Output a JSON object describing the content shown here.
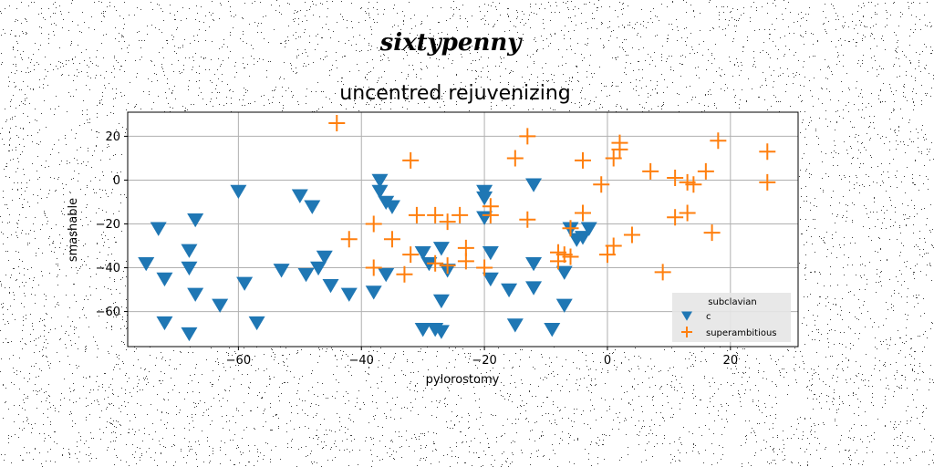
{
  "chart_data": {
    "type": "scatter",
    "suptitle": "sixtypenny",
    "title": "uncentred rejuvenizing",
    "xlabel": "pylorostomy",
    "ylabel": "smashable",
    "xlim": [
      -78,
      31
    ],
    "ylim": [
      -76,
      31
    ],
    "xticks": [
      -60,
      -40,
      -20,
      0,
      20
    ],
    "yticks": [
      -60,
      -40,
      -20,
      0,
      20
    ],
    "grid": true,
    "legend": {
      "title": "subclavian",
      "placement": "lower-right"
    },
    "colors": {
      "c": "#1f77b4",
      "superambitious": "#ff7f0e",
      "grid": "#b0b0b0",
      "legend_bg": "#e5e5e5"
    },
    "series": [
      {
        "name": "c",
        "marker": "triangle-down",
        "points": [
          [
            -73,
            -22
          ],
          [
            -67,
            -18
          ],
          [
            -60,
            -5
          ],
          [
            -50,
            -7
          ],
          [
            -48,
            -12
          ],
          [
            -37,
            0
          ],
          [
            -37,
            -5
          ],
          [
            -36,
            -10
          ],
          [
            -35,
            -12
          ],
          [
            -20,
            -5
          ],
          [
            -20,
            -8
          ],
          [
            -20,
            -17
          ],
          [
            -12,
            -2
          ],
          [
            -75,
            -38
          ],
          [
            -72,
            -45
          ],
          [
            -68,
            -32
          ],
          [
            -68,
            -40
          ],
          [
            -67,
            -52
          ],
          [
            -63,
            -57
          ],
          [
            -59,
            -47
          ],
          [
            -53,
            -41
          ],
          [
            -49,
            -43
          ],
          [
            -47,
            -40
          ],
          [
            -46,
            -35
          ],
          [
            -45,
            -48
          ],
          [
            -42,
            -52
          ],
          [
            -38,
            -51
          ],
          [
            -36,
            -43
          ],
          [
            -30,
            -33
          ],
          [
            -29,
            -38
          ],
          [
            -27,
            -31
          ],
          [
            -26,
            -41
          ],
          [
            -27,
            -55
          ],
          [
            -19,
            -33
          ],
          [
            -19,
            -45
          ],
          [
            -16,
            -50
          ],
          [
            -12,
            -38
          ],
          [
            -12,
            -49
          ],
          [
            -7,
            -42
          ],
          [
            -7,
            -57
          ],
          [
            -6,
            -22
          ],
          [
            -5,
            -27
          ],
          [
            -4,
            -26
          ],
          [
            -3,
            -22
          ],
          [
            -72,
            -65
          ],
          [
            -68,
            -70
          ],
          [
            -57,
            -65
          ],
          [
            -30,
            -68
          ],
          [
            -28,
            -68
          ],
          [
            -27,
            -69
          ],
          [
            -15,
            -66
          ],
          [
            -9,
            -68
          ]
        ]
      },
      {
        "name": "superambitious",
        "marker": "plus",
        "points": [
          [
            -44,
            26
          ],
          [
            -13,
            20
          ],
          [
            -32,
            9
          ],
          [
            -15,
            10
          ],
          [
            -4,
            9
          ],
          [
            1,
            10
          ],
          [
            2,
            14
          ],
          [
            2,
            17
          ],
          [
            7,
            4
          ],
          [
            11,
            1
          ],
          [
            13,
            -1
          ],
          [
            14,
            -2
          ],
          [
            16,
            4
          ],
          [
            18,
            18
          ],
          [
            26,
            13
          ],
          [
            26,
            -1
          ],
          [
            -1,
            -2
          ],
          [
            -42,
            -27
          ],
          [
            -38,
            -20
          ],
          [
            -35,
            -27
          ],
          [
            -31,
            -16
          ],
          [
            -28,
            -16
          ],
          [
            -26,
            -19
          ],
          [
            -24,
            -16
          ],
          [
            -19,
            -12
          ],
          [
            -19,
            -16
          ],
          [
            -13,
            -18
          ],
          [
            -6,
            -22
          ],
          [
            -4,
            -15
          ],
          [
            1,
            -30
          ],
          [
            4,
            -25
          ],
          [
            0,
            -34
          ],
          [
            11,
            -17
          ],
          [
            13,
            -15
          ],
          [
            17,
            -24
          ],
          [
            9,
            -42
          ],
          [
            -38,
            -40
          ],
          [
            -33,
            -43
          ],
          [
            -32,
            -34
          ],
          [
            -28,
            -38
          ],
          [
            -26,
            -39
          ],
          [
            -23,
            -31
          ],
          [
            -23,
            -37
          ],
          [
            -20,
            -40
          ],
          [
            -8,
            -33
          ],
          [
            -8,
            -37
          ],
          [
            -7,
            -34
          ],
          [
            -6,
            -35
          ]
        ]
      }
    ]
  }
}
